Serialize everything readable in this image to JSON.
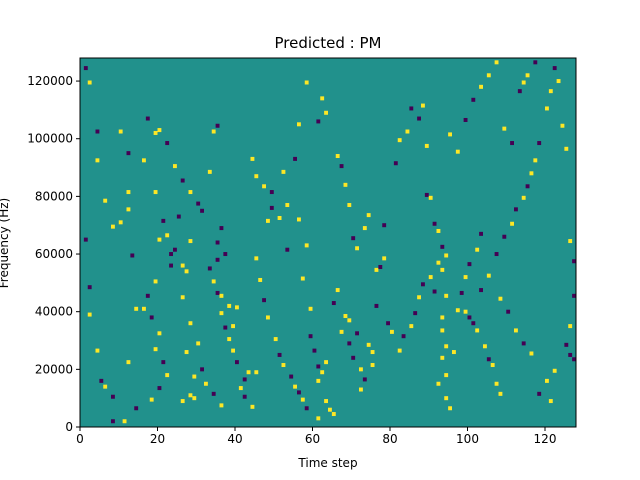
{
  "chart_data": {
    "type": "heatmap",
    "title": "Predicted : PM",
    "xlabel": "Time step",
    "ylabel": "Frequency (Hz)",
    "xlim": [
      0,
      128
    ],
    "ylim": [
      0,
      128000
    ],
    "x_ticks": [
      0,
      20,
      40,
      60,
      80,
      100,
      120
    ],
    "y_ticks": [
      0,
      20000,
      40000,
      60000,
      80000,
      100000,
      120000
    ],
    "grid": false,
    "colormap": "viridis",
    "colors": {
      "background": "#21918c",
      "high": "#fde725",
      "low": "#440154"
    },
    "cells": [
      [
        1,
        124500,
        "low"
      ],
      [
        2,
        119500,
        "high"
      ],
      [
        4,
        102500,
        "low"
      ],
      [
        4,
        92500,
        "high"
      ],
      [
        6,
        78500,
        "high"
      ],
      [
        8,
        69500,
        "high"
      ],
      [
        10,
        102500,
        "high"
      ],
      [
        12,
        95000,
        "low"
      ],
      [
        12,
        81500,
        "high"
      ],
      [
        12,
        75500,
        "high"
      ],
      [
        13,
        59500,
        "low"
      ],
      [
        14,
        41000,
        "high"
      ],
      [
        1,
        65000,
        "low"
      ],
      [
        2,
        48500,
        "low"
      ],
      [
        2,
        39000,
        "high"
      ],
      [
        4,
        26500,
        "high"
      ],
      [
        5,
        16000,
        "low"
      ],
      [
        6,
        14000,
        "high"
      ],
      [
        8,
        10500,
        "low"
      ],
      [
        10,
        71000,
        "high"
      ],
      [
        12,
        22500,
        "high"
      ],
      [
        8,
        2000,
        "low"
      ],
      [
        11,
        2000,
        "high"
      ],
      [
        16,
        92500,
        "high"
      ],
      [
        17,
        107000,
        "low"
      ],
      [
        19,
        102000,
        "high"
      ],
      [
        19,
        81500,
        "high"
      ],
      [
        20,
        65000,
        "high"
      ],
      [
        23,
        60000,
        "low"
      ],
      [
        25,
        73000,
        "low"
      ],
      [
        26,
        56000,
        "high"
      ],
      [
        27,
        54000,
        "high"
      ],
      [
        28,
        64500,
        "high"
      ],
      [
        26,
        45000,
        "high"
      ],
      [
        28,
        36000,
        "high"
      ],
      [
        27,
        26000,
        "high"
      ],
      [
        26,
        9000,
        "high"
      ],
      [
        28,
        11000,
        "high"
      ],
      [
        29,
        10000,
        "high"
      ],
      [
        29,
        17500,
        "high"
      ],
      [
        30,
        29000,
        "high"
      ],
      [
        31,
        75000,
        "low"
      ],
      [
        33,
        88500,
        "high"
      ],
      [
        34,
        102500,
        "high"
      ],
      [
        35,
        104500,
        "low"
      ],
      [
        36,
        69000,
        "low"
      ],
      [
        35,
        64000,
        "low"
      ],
      [
        37,
        60000,
        "low"
      ],
      [
        35,
        58000,
        "low"
      ],
      [
        36,
        45500,
        "high"
      ],
      [
        38,
        42000,
        "high"
      ],
      [
        39,
        35000,
        "high"
      ],
      [
        40,
        41500,
        "high"
      ],
      [
        43,
        19000,
        "high"
      ],
      [
        42,
        16500,
        "low"
      ],
      [
        45,
        19000,
        "high"
      ],
      [
        44,
        7000,
        "high"
      ],
      [
        48,
        71500,
        "high"
      ],
      [
        49,
        81500,
        "low"
      ],
      [
        52,
        88500,
        "high"
      ],
      [
        53,
        77000,
        "high"
      ],
      [
        55,
        93000,
        "low"
      ],
      [
        56,
        72000,
        "high"
      ],
      [
        58,
        63000,
        "high"
      ],
      [
        57,
        51500,
        "high"
      ],
      [
        59,
        41000,
        "high"
      ],
      [
        56,
        105000,
        "high"
      ],
      [
        58,
        119500,
        "high"
      ],
      [
        61,
        106000,
        "low"
      ],
      [
        62,
        114000,
        "high"
      ],
      [
        63,
        109000,
        "high"
      ],
      [
        59,
        31500,
        "low"
      ],
      [
        60,
        26500,
        "low"
      ],
      [
        61,
        21000,
        "low"
      ],
      [
        61,
        16000,
        "high"
      ],
      [
        62,
        19000,
        "high"
      ],
      [
        63,
        22500,
        "high"
      ],
      [
        63,
        9000,
        "high"
      ],
      [
        64,
        6000,
        "high"
      ],
      [
        65,
        4500,
        "high"
      ],
      [
        61,
        3000,
        "high"
      ],
      [
        67,
        33000,
        "high"
      ],
      [
        69,
        37000,
        "high"
      ],
      [
        69,
        29000,
        "low"
      ],
      [
        70,
        24000,
        "low"
      ],
      [
        72,
        20000,
        "high"
      ],
      [
        72,
        13000,
        "high"
      ],
      [
        73,
        16500,
        "low"
      ],
      [
        75,
        21500,
        "high"
      ],
      [
        76,
        42000,
        "low"
      ],
      [
        76,
        54500,
        "high"
      ],
      [
        77,
        55500,
        "low"
      ],
      [
        78,
        58500,
        "high"
      ],
      [
        78,
        70000,
        "low"
      ],
      [
        81,
        91500,
        "low"
      ],
      [
        82,
        99500,
        "high"
      ],
      [
        84,
        102500,
        "high"
      ],
      [
        85,
        110500,
        "low"
      ],
      [
        87,
        107000,
        "low"
      ],
      [
        88,
        111500,
        "high"
      ],
      [
        89,
        97500,
        "high"
      ],
      [
        89,
        80500,
        "low"
      ],
      [
        90,
        79500,
        "high"
      ],
      [
        91,
        70500,
        "low"
      ],
      [
        92,
        68000,
        "high"
      ],
      [
        93,
        62500,
        "low"
      ],
      [
        92,
        57000,
        "high"
      ],
      [
        93,
        54500,
        "high"
      ],
      [
        94,
        59500,
        "high"
      ],
      [
        94,
        45500,
        "high"
      ],
      [
        93,
        38000,
        "high"
      ],
      [
        93,
        33500,
        "high"
      ],
      [
        94,
        28000,
        "high"
      ],
      [
        93,
        24000,
        "high"
      ],
      [
        94,
        18000,
        "high"
      ],
      [
        92,
        15000,
        "high"
      ],
      [
        94,
        10000,
        "high"
      ],
      [
        95,
        6500,
        "high"
      ],
      [
        96,
        26000,
        "high"
      ],
      [
        97,
        40500,
        "high"
      ],
      [
        98,
        46500,
        "low"
      ],
      [
        99,
        40000,
        "high"
      ],
      [
        100,
        38000,
        "low"
      ],
      [
        101,
        36000,
        "low"
      ],
      [
        102,
        33500,
        "high"
      ],
      [
        104,
        28000,
        "high"
      ],
      [
        105,
        23500,
        "low"
      ],
      [
        106,
        21500,
        "high"
      ],
      [
        107,
        15000,
        "high"
      ],
      [
        108,
        11500,
        "high"
      ],
      [
        103,
        47500,
        "low"
      ],
      [
        105,
        52500,
        "high"
      ],
      [
        107,
        60000,
        "low"
      ],
      [
        109,
        66000,
        "low"
      ],
      [
        111,
        70500,
        "high"
      ],
      [
        112,
        75500,
        "low"
      ],
      [
        114,
        79500,
        "high"
      ],
      [
        115,
        83500,
        "low"
      ],
      [
        116,
        88000,
        "high"
      ],
      [
        117,
        92500,
        "high"
      ],
      [
        118,
        98500,
        "low"
      ],
      [
        120,
        110500,
        "high"
      ],
      [
        121,
        116500,
        "high"
      ],
      [
        122,
        124500,
        "low"
      ],
      [
        123,
        120000,
        "high"
      ],
      [
        124,
        104500,
        "high"
      ],
      [
        125,
        96500,
        "high"
      ],
      [
        126,
        64500,
        "high"
      ],
      [
        127,
        57500,
        "low"
      ],
      [
        127,
        45500,
        "low"
      ],
      [
        126,
        35000,
        "high"
      ],
      [
        125,
        28500,
        "low"
      ],
      [
        126,
        25000,
        "low"
      ],
      [
        127,
        23500,
        "low"
      ],
      [
        122,
        19500,
        "high"
      ],
      [
        120,
        16000,
        "high"
      ],
      [
        118,
        11500,
        "low"
      ],
      [
        121,
        9000,
        "high"
      ],
      [
        116,
        25500,
        "high"
      ],
      [
        114,
        29000,
        "low"
      ],
      [
        112,
        33500,
        "high"
      ],
      [
        110,
        40000,
        "low"
      ],
      [
        108,
        44500,
        "high"
      ],
      [
        99,
        52000,
        "high"
      ],
      [
        100,
        56500,
        "low"
      ],
      [
        102,
        61500,
        "high"
      ],
      [
        103,
        67000,
        "low"
      ],
      [
        97,
        95500,
        "high"
      ],
      [
        95,
        101500,
        "high"
      ],
      [
        99,
        106500,
        "low"
      ],
      [
        101,
        113500,
        "low"
      ],
      [
        103,
        118000,
        "high"
      ],
      [
        105,
        122000,
        "high"
      ],
      [
        107,
        126500,
        "high"
      ],
      [
        113,
        116500,
        "low"
      ],
      [
        114,
        119500,
        "high"
      ],
      [
        115,
        122000,
        "high"
      ],
      [
        117,
        126500,
        "low"
      ],
      [
        109,
        103500,
        "high"
      ],
      [
        111,
        98500,
        "low"
      ],
      [
        66,
        94000,
        "high"
      ],
      [
        67,
        90500,
        "low"
      ],
      [
        68,
        84000,
        "high"
      ],
      [
        69,
        77000,
        "high"
      ],
      [
        70,
        65500,
        "low"
      ],
      [
        71,
        62000,
        "high"
      ],
      [
        73,
        69000,
        "high"
      ],
      [
        74,
        73500,
        "high"
      ],
      [
        66,
        47500,
        "high"
      ],
      [
        65,
        43000,
        "low"
      ],
      [
        68,
        38500,
        "high"
      ],
      [
        71,
        32500,
        "low"
      ],
      [
        74,
        28500,
        "high"
      ],
      [
        75,
        26000,
        "high"
      ],
      [
        79,
        36000,
        "low"
      ],
      [
        80,
        33000,
        "high"
      ],
      [
        82,
        26500,
        "high"
      ],
      [
        83,
        31500,
        "low"
      ],
      [
        85,
        35000,
        "high"
      ],
      [
        86,
        39500,
        "low"
      ],
      [
        87,
        45000,
        "high"
      ],
      [
        88,
        49500,
        "low"
      ],
      [
        90,
        52000,
        "high"
      ],
      [
        91,
        47000,
        "low"
      ],
      [
        44,
        93000,
        "high"
      ],
      [
        45,
        87000,
        "high"
      ],
      [
        47,
        83500,
        "high"
      ],
      [
        49,
        76000,
        "low"
      ],
      [
        51,
        72500,
        "high"
      ],
      [
        53,
        61500,
        "low"
      ],
      [
        45,
        58500,
        "high"
      ],
      [
        46,
        51000,
        "high"
      ],
      [
        47,
        44000,
        "low"
      ],
      [
        48,
        38000,
        "high"
      ],
      [
        50,
        30500,
        "high"
      ],
      [
        51,
        25000,
        "low"
      ],
      [
        52,
        21500,
        "high"
      ],
      [
        54,
        17500,
        "low"
      ],
      [
        55,
        14000,
        "high"
      ],
      [
        56,
        12000,
        "low"
      ],
      [
        57,
        9500,
        "high"
      ],
      [
        58,
        6500,
        "low"
      ],
      [
        33,
        55000,
        "low"
      ],
      [
        34,
        50500,
        "high"
      ],
      [
        35,
        46500,
        "low"
      ],
      [
        36,
        39500,
        "high"
      ],
      [
        37,
        34500,
        "low"
      ],
      [
        38,
        30500,
        "high"
      ],
      [
        39,
        26500,
        "high"
      ],
      [
        40,
        22500,
        "low"
      ],
      [
        41,
        13500,
        "high"
      ],
      [
        42,
        10500,
        "low"
      ],
      [
        31,
        20000,
        "low"
      ],
      [
        32,
        15000,
        "high"
      ],
      [
        34,
        11500,
        "low"
      ],
      [
        36,
        7500,
        "high"
      ],
      [
        20,
        103000,
        "high"
      ],
      [
        22,
        98500,
        "low"
      ],
      [
        24,
        90500,
        "high"
      ],
      [
        26,
        85500,
        "low"
      ],
      [
        28,
        81500,
        "high"
      ],
      [
        30,
        77500,
        "low"
      ],
      [
        21,
        71500,
        "low"
      ],
      [
        22,
        66500,
        "high"
      ],
      [
        24,
        61500,
        "low"
      ],
      [
        23,
        56000,
        "low"
      ],
      [
        19,
        50500,
        "high"
      ],
      [
        17,
        45500,
        "low"
      ],
      [
        16,
        41000,
        "high"
      ],
      [
        18,
        38000,
        "low"
      ],
      [
        20,
        32500,
        "high"
      ],
      [
        19,
        27000,
        "high"
      ],
      [
        21,
        22500,
        "low"
      ],
      [
        22,
        18000,
        "high"
      ],
      [
        20,
        13500,
        "low"
      ],
      [
        18,
        9500,
        "high"
      ],
      [
        14,
        6500,
        "low"
      ]
    ]
  }
}
